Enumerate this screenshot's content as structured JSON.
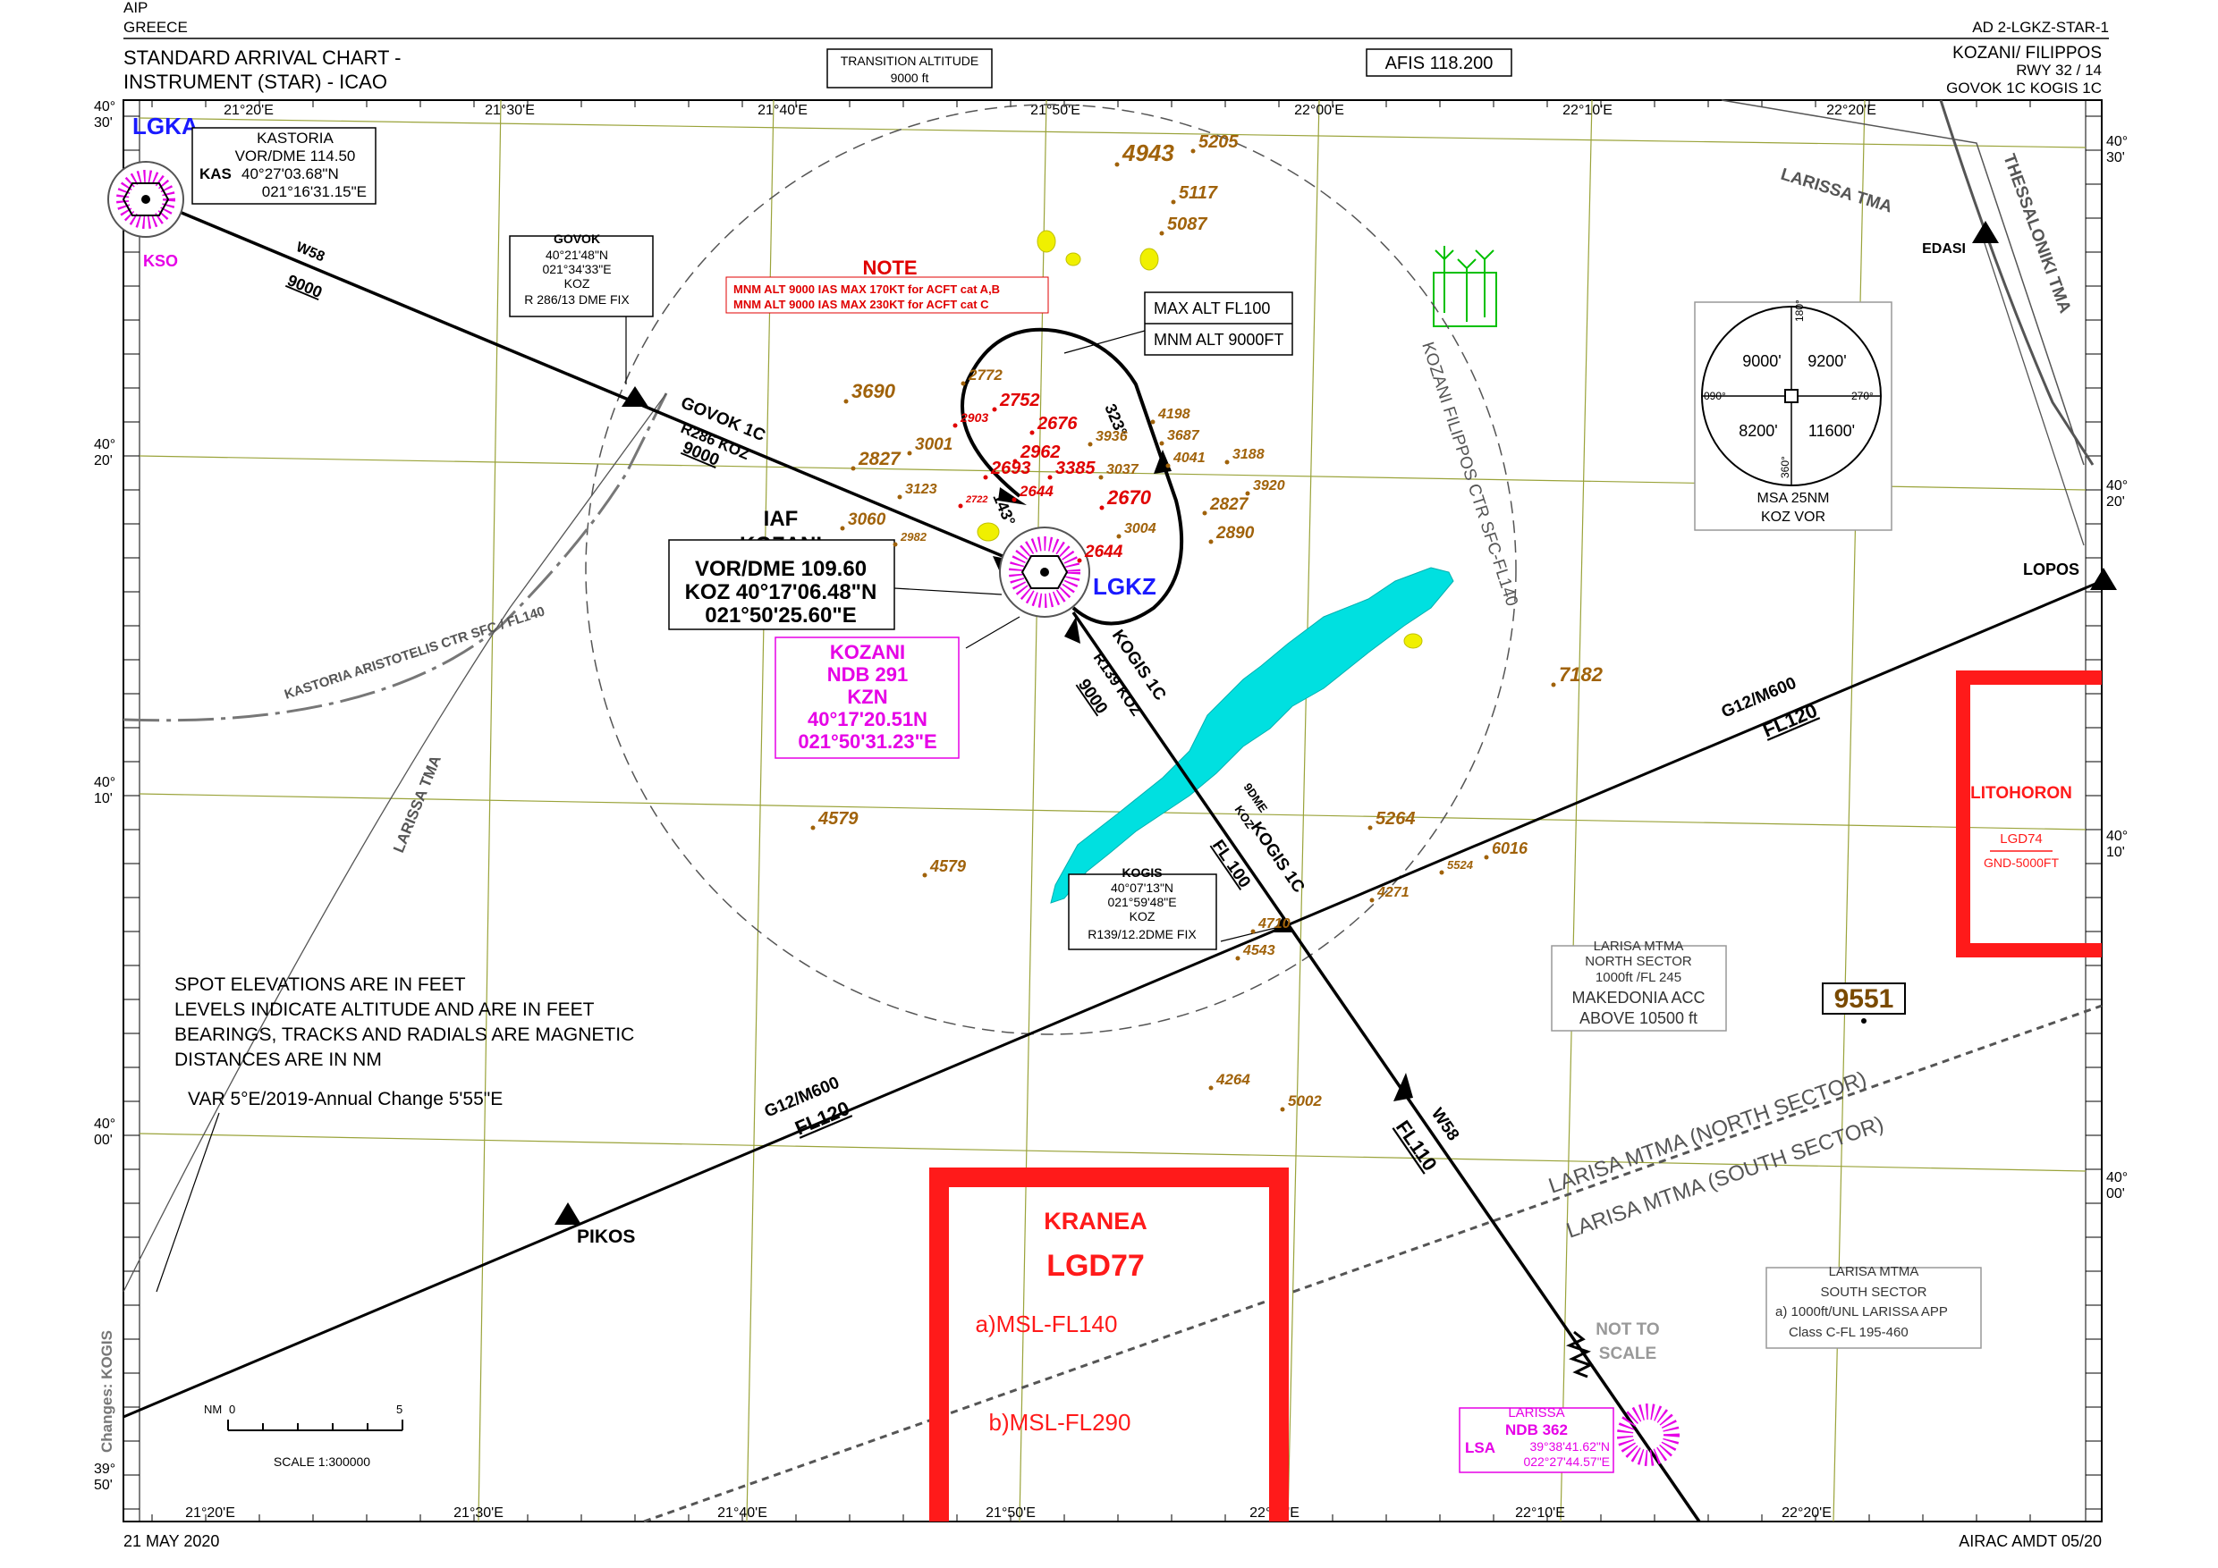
{
  "header": {
    "aip": "AIP",
    "country": "GREECE",
    "chart_id": "AD 2-LGKZ-STAR-1",
    "title_line1": "STANDARD ARRIVAL CHART -",
    "title_line2": "INSTRUMENT (STAR) - ICAO",
    "transition_label": "TRANSITION ALTITUDE",
    "transition_value": "9000 ft",
    "afis": "AFIS  118.200",
    "aerodrome": "KOZANI/ FILIPPOS",
    "runways": "RWY 32 / 14",
    "procedures": "GOVOK 1C  KOGIS 1C"
  },
  "footer": {
    "date": "21 MAY 2020",
    "amendment": "AIRAC AMDT 05/20",
    "changes": "Changes: KOGIS"
  },
  "grid": {
    "top_longitudes": [
      "21°20'E",
      "21°30'E",
      "21°40'E",
      "21°50'E",
      "22°00'E",
      "22°10'E",
      "22°20'E"
    ],
    "bottom_longitudes": [
      "21°20'E",
      "21°30'E",
      "21°40'E",
      "21°50'E",
      "22°00'E",
      "22°10'E",
      "22°20'E"
    ],
    "left_latitudes": [
      [
        "40°",
        "30'"
      ],
      [
        "40°",
        "20'"
      ],
      [
        "40°",
        "10'"
      ],
      [
        "40°",
        "00'"
      ],
      [
        "39°",
        "50'"
      ]
    ],
    "right_latitudes": [
      [
        "40°",
        "30'"
      ],
      [
        "40°",
        "20'"
      ],
      [
        "40°",
        "10'"
      ],
      [
        "40°",
        "00'"
      ]
    ]
  },
  "kastoria": {
    "icao": "LGKA",
    "name": "KASTORIA",
    "vor": "VOR/DME 114.50",
    "ident": "KAS",
    "lat": "40°27'03.68\"N",
    "lon": "021°16'31.15\"E",
    "ndb": "KSO"
  },
  "govok_box": [
    "GOVOK",
    "40°21'48\"N",
    "021°34'33\"E",
    "KOZ",
    "R 286/13 DME FIX"
  ],
  "kogis_box": [
    "KOGIS",
    "40°07'13\"N",
    "021°59'48\"E",
    "KOZ",
    "R139/12.2DME FIX"
  ],
  "iaf_box": {
    "iaf": "IAF",
    "name": "KOZANI",
    "vor": "VOR/DME 109.60",
    "coord_line1": "KOZ 40°17'06.48\"N",
    "coord_line2": "021°50'25.60\"E"
  },
  "kozani_ndb": [
    "KOZANI",
    "NDB 291",
    "KZN",
    "40°17'20.51N",
    "021°50'31.23\"E"
  ],
  "aerodrome_icao": "LGKZ",
  "note": {
    "title": "NOTE",
    "line1": "MNM ALT 9000 IAS MAX 170KT for ACFT cat A,B",
    "line2": "MNM ALT 9000 IAS MAX 230KT for ACFT cat C"
  },
  "holding": {
    "max_alt": "MAX ALT FL100",
    "mnm_alt": "MNM ALT 9000FT",
    "inbound": "323°",
    "outbound": "143°"
  },
  "routes": {
    "w58_nw": "W58",
    "w58_nw_alt": "9000",
    "govok_1c": "GOVOK 1C",
    "govok_radial": "R286 KOZ",
    "govok_alt": "9000",
    "kogis_1c": "KOGIS 1C",
    "kogis_radial": "R139 KOZ",
    "kogis_alt": "9000",
    "kogis_1c_lower": "KOGIS 1C",
    "kogis_fl": "FL 100",
    "dme9": "9DME",
    "dme9_koz": "KOZ",
    "w58_se": "W58",
    "w58_se_fl": "FL110",
    "g12_ne": "G12/M600",
    "g12_ne_fl": "FL120",
    "g12_sw": "G12/M600",
    "g12_sw_fl": "FL120"
  },
  "waypoints": {
    "pikos": "PIKOS",
    "lopos": "LOPOS",
    "edasi": "EDASI"
  },
  "airspace": {
    "larissa_tma_ne": "LARISSA TMA",
    "thessaloniki_tma": "THESSALONIKI TMA",
    "kozani_ctr": "KOZANI FILIPPOS CTR SFC-FL140",
    "kastoria_ctr": "KASTORIA ARISTOTELIS CTR SFC / FL140",
    "larissa_tma_w": "LARISSA TMA",
    "mtma_north_line": "LARISA MTMA (NORTH SECTOR)",
    "mtma_south_line": "LARISA MTMA (SOUTH SECTOR)",
    "mtma_north_box": [
      "LARISA MTMA",
      "NORTH SECTOR",
      "1000ft /FL 245",
      "MAKEDONIA ACC",
      "ABOVE 10500 ft"
    ],
    "mtma_south_box": [
      "LARISA MTMA",
      "SOUTH SECTOR",
      "a) 1000ft/UNL  LARISSA APP",
      "Class C-FL 195-460"
    ]
  },
  "restricted": {
    "litohoron_name": "LITOHORON",
    "litohoron_id": "LGD74",
    "litohoron_limits": "GND-5000FT",
    "kranea_name": "KRANEA",
    "kranea_id": "LGD77",
    "kranea_a": "a)MSL-FL140",
    "kranea_b": "b)MSL-FL290"
  },
  "msa": {
    "nw": "9000'",
    "ne": "9200'",
    "sw": "8200'",
    "se": "11600'",
    "brg_top": "180°",
    "brg_left": "090°",
    "brg_right": "270°",
    "brg_bottom": "360°",
    "caption1": "MSA 25NM",
    "caption2": "KOZ  VOR"
  },
  "notes_block": [
    "SPOT ELEVATIONS ARE IN FEET",
    "LEVELS INDICATE ALTITUDE AND ARE IN FEET",
    "BEARINGS, TRACKS AND RADIALS ARE MAGNETIC",
    "DISTANCES ARE IN NM"
  ],
  "variation": "VAR 5°E/2019-Annual Change 5'55\"E",
  "scale": {
    "nm": "NM",
    "zero": "0",
    "five": "5",
    "text": "SCALE 1:300000"
  },
  "not_to_scale": [
    "NOT TO",
    "SCALE"
  ],
  "larissa_ndb": {
    "name": "LARISSA",
    "ndb": "NDB 362",
    "ident": "LSA",
    "lat": "39°38'41.62\"N",
    "lon": "022°27'44.57\"E"
  },
  "spot_heights": [
    "4943",
    "5205",
    "5117",
    "5087",
    "3690",
    "2772",
    "2827",
    "3001",
    "3123",
    "3060",
    "2982",
    "4198",
    "3687",
    "3936",
    "4041",
    "3188",
    "3037",
    "3920",
    "2827",
    "2890",
    "3004",
    "7182",
    "5264",
    "6016",
    "5524",
    "4271",
    "4543",
    "4710",
    "4579",
    "4579",
    "4264",
    "5002"
  ],
  "spot_heights_red": [
    "2903",
    "2752",
    "2676",
    "2962",
    "2693",
    "3385",
    "2722",
    "2644",
    "2670",
    "2644"
  ],
  "max_elevation": "9551",
  "colors": {
    "route": "#000000",
    "restricted": "#ff1a1a",
    "ndb": "#e600e6",
    "spot": "#a0620a",
    "lake": "#00e0e0",
    "town": "#f0f000",
    "icao_blue": "#1a1aff"
  }
}
